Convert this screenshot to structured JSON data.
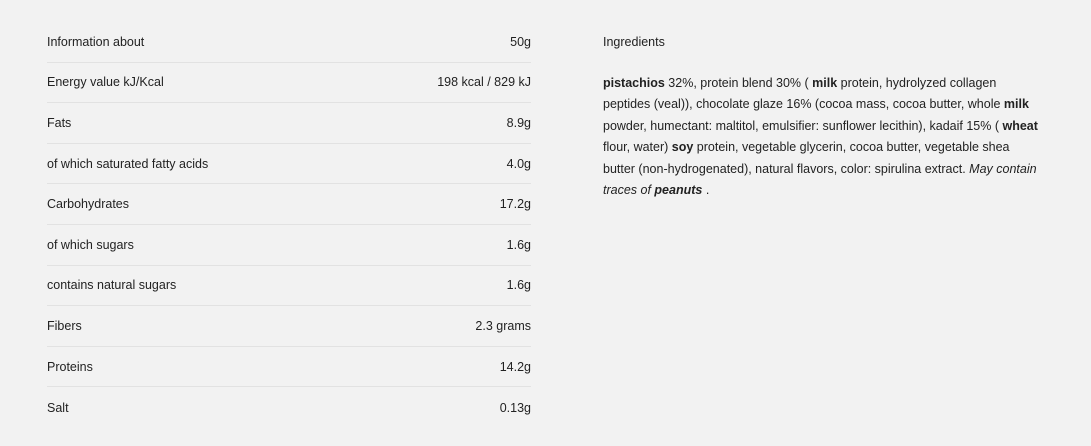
{
  "nutrition": {
    "rows": [
      {
        "label": "Information about",
        "value": "50g"
      },
      {
        "label": "Energy value kJ/Kcal",
        "value": "198 kcal / 829 kJ"
      },
      {
        "label": "Fats",
        "value": "8.9g"
      },
      {
        "label": "of which saturated fatty acids",
        "value": "4.0g"
      },
      {
        "label": "Carbohydrates",
        "value": "17.2g"
      },
      {
        "label": "of which sugars",
        "value": "1.6g"
      },
      {
        "label": "contains natural sugars",
        "value": "1.6g"
      },
      {
        "label": "Fibers",
        "value": "2.3 grams"
      },
      {
        "label": "Proteins",
        "value": "14.2g"
      },
      {
        "label": "Salt",
        "value": "0.13g"
      }
    ]
  },
  "ingredients": {
    "title": "Ingredients",
    "segments": [
      {
        "text": "pistachios",
        "style": "b"
      },
      {
        "text": " 32%, protein blend 30% ( ",
        "style": ""
      },
      {
        "text": "milk",
        "style": "b"
      },
      {
        "text": " protein, hydrolyzed collagen peptides (veal)), chocolate glaze 16% (cocoa mass, cocoa butter, whole ",
        "style": ""
      },
      {
        "text": "milk",
        "style": "b"
      },
      {
        "text": " powder, humectant: maltitol, emulsifier: sunflower lecithin), kadaif 15% ( ",
        "style": ""
      },
      {
        "text": "wheat",
        "style": "b"
      },
      {
        "text": " flour, water) ",
        "style": ""
      },
      {
        "text": "soy",
        "style": "b"
      },
      {
        "text": " protein, vegetable glycerin, cocoa butter, vegetable shea butter (non-hydrogenated), natural flavors, color: spirulina extract. ",
        "style": ""
      },
      {
        "text": "May contain traces of ",
        "style": "i"
      },
      {
        "text": "peanuts",
        "style": "i b"
      },
      {
        "text": " .",
        "style": ""
      }
    ]
  }
}
